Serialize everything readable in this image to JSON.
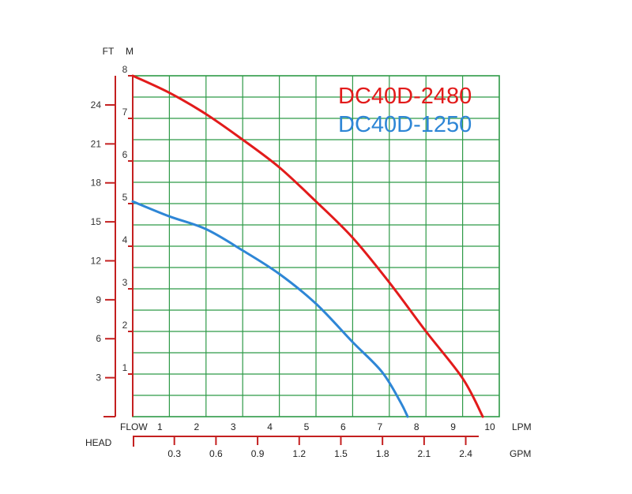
{
  "chart_data": {
    "type": "line",
    "x_axis": {
      "name": "FLOW",
      "unit": "LPM",
      "range": [
        0,
        10
      ],
      "ticks": [
        1,
        2,
        3,
        4,
        5,
        6,
        7,
        8,
        9,
        10
      ],
      "tick_labels": [
        "1",
        "2",
        "3",
        "4",
        "5",
        "6",
        "7",
        "8",
        "9",
        "10"
      ]
    },
    "x_axis_secondary": {
      "name": "HEAD",
      "unit": "GPM",
      "ticks": [
        0.3,
        0.6,
        0.9,
        1.2,
        1.5,
        1.8,
        2.1,
        2.4
      ],
      "tick_labels": [
        "0.3",
        "0.6",
        "0.9",
        "1.2",
        "1.5",
        "1.8",
        "2.1",
        "2.4"
      ]
    },
    "y_axis": {
      "unit": "M",
      "range": [
        0,
        8
      ],
      "ticks": [
        1,
        2,
        3,
        4,
        5,
        6,
        7,
        8
      ],
      "tick_labels": [
        "1",
        "2",
        "3",
        "4",
        "5",
        "6",
        "7",
        "8"
      ]
    },
    "y_axis_secondary": {
      "unit": "FT",
      "ticks": [
        3,
        6,
        9,
        12,
        15,
        18,
        21,
        24
      ],
      "tick_labels": [
        "3",
        "6",
        "9",
        "12",
        "15",
        "18",
        "21",
        "24"
      ]
    },
    "grid": true,
    "grid_minor_y_step": 0.5,
    "legend_position": "top-right",
    "series": [
      {
        "name": "DC40D-2480",
        "color": "#e21b1b",
        "x": [
          0,
          1,
          2,
          3,
          4,
          5,
          6,
          7,
          8,
          9,
          9.55
        ],
        "y": [
          8.0,
          7.6,
          7.1,
          6.5,
          5.85,
          5.05,
          4.2,
          3.15,
          2.0,
          0.9,
          0.0
        ]
      },
      {
        "name": "DC40D-1250",
        "color": "#2e86d6",
        "x": [
          0,
          1,
          2,
          3,
          4,
          5,
          6,
          6.8,
          7.3,
          7.5
        ],
        "y": [
          5.05,
          4.7,
          4.4,
          3.9,
          3.35,
          2.65,
          1.75,
          1.05,
          0.35,
          0.0
        ]
      }
    ]
  }
}
